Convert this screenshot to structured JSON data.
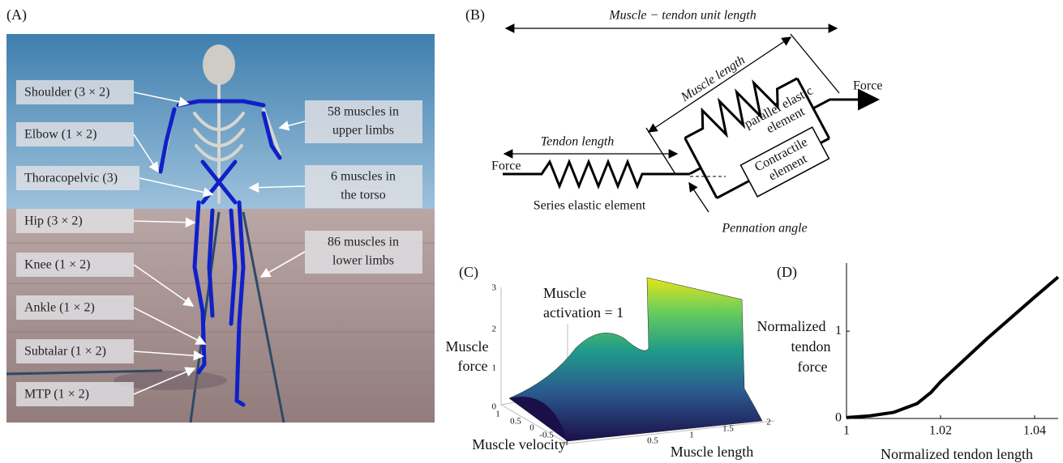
{
  "panels": {
    "a": {
      "label": "(A)",
      "joints": [
        "Shoulder (3 × 2)",
        "Elbow (1 × 2)",
        "Thoracopelvic (3)",
        "Hip (3 × 2)",
        "Knee (1 × 2)",
        "Ankle (1 × 2)",
        "Subtalar (1 × 2)",
        "MTP (1 × 2)"
      ],
      "muscle_groups": [
        [
          "58 muscles in",
          "upper limbs"
        ],
        [
          "6 muscles in",
          "the torso"
        ],
        [
          "86 muscles in",
          "lower limbs"
        ]
      ]
    },
    "b": {
      "label": "(B)",
      "mtu_length": "Muscle − tendon unit length",
      "muscle_length": "Muscle length",
      "tendon_length": "Tendon length",
      "force_in": "Force",
      "force_out": "Force",
      "parallel": [
        "parallel elastic",
        "element"
      ],
      "contractile": [
        "Contractile",
        "element"
      ],
      "series": "Series elastic element",
      "pennation": "Pennation angle"
    },
    "c": {
      "label": "(C)",
      "activation": [
        "Muscle",
        "activation = 1"
      ],
      "z_label": [
        "Muscle",
        "force"
      ],
      "x_label": "Muscle velocity",
      "y_label": "Muscle length",
      "zticks": [
        0,
        1,
        2,
        3
      ],
      "velocity_ticks": [
        1,
        0.5,
        0,
        -0.5,
        -1
      ],
      "length_ticks": [
        0.5,
        1,
        1.5,
        2
      ]
    },
    "d": {
      "label": "(D)",
      "type": "line",
      "x": [
        1,
        1.005,
        1.01,
        1.015,
        1.018,
        1.02,
        1.03,
        1.04,
        1.045
      ],
      "y": [
        0.01,
        0.03,
        0.07,
        0.17,
        0.3,
        0.42,
        0.92,
        1.39,
        1.62
      ],
      "xlim": [
        1,
        1.045
      ],
      "ylim": [
        0,
        1.78
      ],
      "xticks": [
        1,
        1.02,
        1.04
      ],
      "yticks": [
        0,
        1
      ],
      "y_label": [
        "Normalized",
        "tendon",
        "force"
      ],
      "x_label": "Normalized tendon length"
    }
  }
}
